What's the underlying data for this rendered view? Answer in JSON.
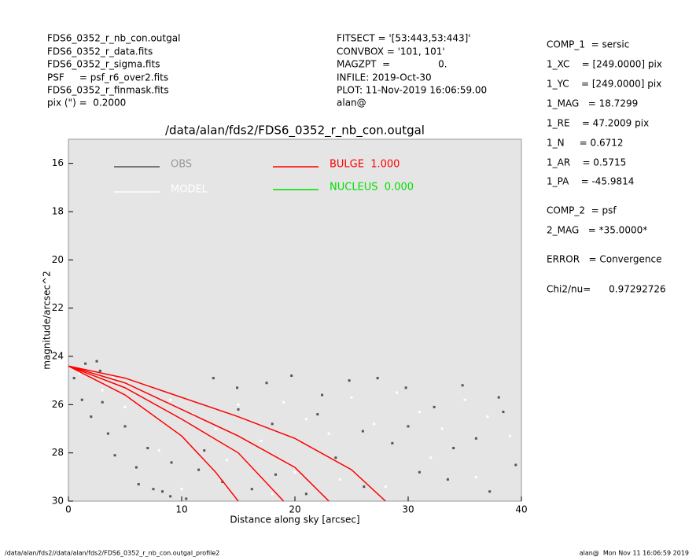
{
  "header_left": [
    "FDS6_0352_r_nb_con.outgal",
    "FDS6_0352_r_data.fits",
    "FDS6_0352_r_sigma.fits",
    "PSF     = psf_r6_over2.fits",
    "FDS6_0352_r_finmask.fits",
    "pix (\") =  0.2000"
  ],
  "header_middle": [
    "FITSECT = '[53:443,53:443]'",
    "CONVBOX = '101, 101'",
    "MAGZPT  =                0.",
    "INFILE: 2019-Oct-30",
    "PLOT: 11-Nov-2019 16:06:59.00",
    "alan@"
  ],
  "parameters": [
    "COMP_1  = sersic",
    "1_XC    = [249.0000] pix",
    "1_YC    = [249.0000] pix",
    "1_MAG   = 18.7299",
    "1_RE    = 47.2009 pix",
    "1_N     = 0.6712",
    "1_AR    = 0.5715",
    "1_PA    = -45.9814",
    "COMP_2  = psf",
    "2_MAG   = *35.0000*",
    "ERROR   = Convergence",
    "Chi2/nu=      0.97292726"
  ],
  "footer_left": "/data/alan/fds2//data/alan/fds2/FDS6_0352_r_nb_con.outgal_profile2",
  "footer_right": "alan@  Mon Nov 11 16:06:59 2019",
  "chart_data": {
    "type": "scatter",
    "title": "/data/alan/fds2/FDS6_0352_r_nb_con.outgal",
    "x_label": "Distance along sky [arcsec]",
    "y_label": "magnitude/arcsec^2",
    "xlim": [
      0,
      40
    ],
    "xticks": [
      0,
      10,
      20,
      30,
      40
    ],
    "ylim": [
      15,
      30
    ],
    "yticks": [
      16,
      18,
      20,
      22,
      24,
      26,
      28,
      30
    ],
    "y_inverted": true,
    "background": "#e5e5e5",
    "series": [
      {
        "name": "OBS",
        "color": "#555555",
        "type": "scatter",
        "x": [
          0.5,
          1.2,
          2,
          2.8,
          3.5,
          4.1,
          5,
          6.2,
          7,
          8.3,
          9.1,
          10.4,
          11.5,
          12.8,
          13.6,
          14.9,
          16.2,
          17.5,
          18.3,
          19.7,
          21,
          22.4,
          23.6,
          24.8,
          26.1,
          27.3,
          28.6,
          29.8,
          31,
          32.3,
          33.5,
          34.8,
          36,
          37.2,
          38.4,
          39.5,
          1.5,
          3,
          6,
          9,
          12,
          15,
          18,
          22,
          26,
          30,
          34,
          38,
          2.5,
          7.5
        ],
        "values": [
          24.9,
          25.8,
          26.5,
          24.6,
          27.2,
          28.1,
          26.9,
          29.3,
          27.8,
          29.6,
          28.4,
          29.9,
          28.7,
          24.9,
          29.2,
          25.3,
          29.5,
          25.1,
          28.9,
          24.8,
          29.7,
          25.6,
          28.2,
          25.0,
          29.4,
          24.9,
          27.6,
          25.3,
          28.8,
          26.1,
          29.1,
          25.2,
          27.4,
          29.6,
          26.3,
          28.5,
          24.3,
          25.9,
          28.6,
          29.8,
          27.9,
          26.2,
          26.8,
          26.4,
          27.1,
          26.9,
          27.8,
          25.7,
          24.2,
          29.5
        ]
      },
      {
        "name": "MODEL",
        "color": "#ffffff",
        "type": "scatter",
        "x": [
          1,
          3,
          5,
          7,
          9,
          11,
          13,
          15,
          17,
          19,
          21,
          23,
          25,
          27,
          29,
          31,
          33,
          35,
          37,
          39,
          4,
          8,
          14,
          20,
          24,
          28,
          32,
          36,
          10,
          18
        ],
        "values": [
          24.7,
          25.4,
          26.1,
          25.2,
          25.8,
          26.4,
          27.0,
          26.0,
          27.5,
          25.9,
          26.6,
          27.2,
          25.7,
          26.8,
          25.5,
          26.3,
          27.0,
          25.8,
          26.5,
          27.3,
          24.9,
          27.9,
          28.3,
          28.8,
          29.1,
          29.4,
          28.2,
          29.0,
          29.5,
          29.7
        ]
      },
      {
        "name": "BULGE  1.000",
        "color": "#ff0000",
        "type": "line",
        "x": [
          0,
          5,
          10,
          13,
          15,
          null,
          0,
          5,
          10,
          15,
          19,
          null,
          0,
          5,
          10,
          15,
          20,
          23,
          null,
          0,
          5,
          10,
          15,
          20,
          25,
          28
        ],
        "values": [
          24.4,
          25.6,
          27.3,
          28.8,
          30,
          null,
          24.4,
          25.3,
          26.6,
          28.0,
          30,
          null,
          24.4,
          25.1,
          26.2,
          27.3,
          28.6,
          30,
          null,
          24.4,
          24.9,
          25.7,
          26.5,
          27.4,
          28.7,
          30
        ]
      },
      {
        "name": "NUCLEUS  0.000",
        "color": "#00dd00",
        "type": "line"
      }
    ]
  }
}
